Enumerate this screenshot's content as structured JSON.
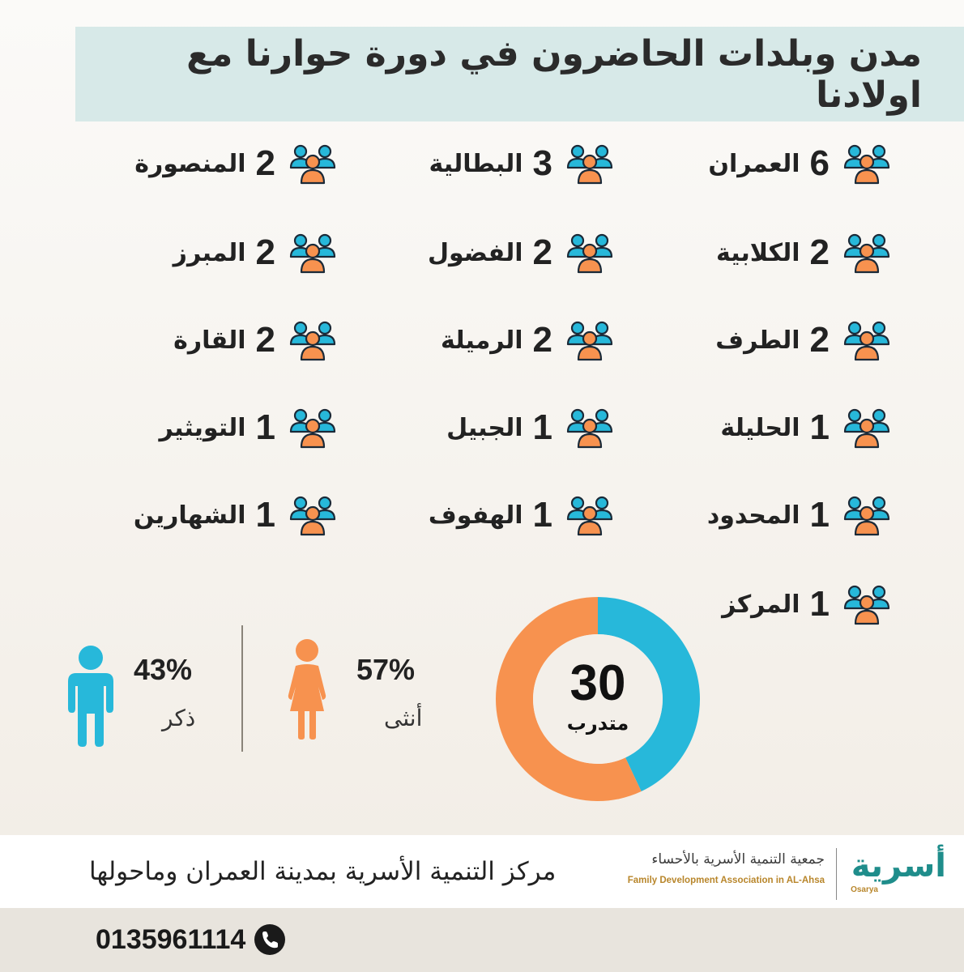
{
  "title": "مدن وبلدات الحاضرون في دورة حوارنا مع اولادنا",
  "cities": [
    {
      "name": "العمران",
      "count": "6"
    },
    {
      "name": "البطالية",
      "count": "3"
    },
    {
      "name": "المنصورة",
      "count": "2"
    },
    {
      "name": "الكلابية",
      "count": "2"
    },
    {
      "name": "الفضول",
      "count": "2"
    },
    {
      "name": "المبرز",
      "count": "2"
    },
    {
      "name": "الطرف",
      "count": "2"
    },
    {
      "name": "الرميلة",
      "count": "2"
    },
    {
      "name": "القارة",
      "count": "2"
    },
    {
      "name": "الحليلة",
      "count": "1"
    },
    {
      "name": "الجبيل",
      "count": "1"
    },
    {
      "name": "التويثير",
      "count": "1"
    },
    {
      "name": "المحدود",
      "count": "1"
    },
    {
      "name": "الهفوف",
      "count": "1"
    },
    {
      "name": "الشهارين",
      "count": "1"
    },
    {
      "name": "المركز",
      "count": "1"
    }
  ],
  "total": {
    "number": "30",
    "label": "متدرب"
  },
  "gender": {
    "female": {
      "percent": "57%",
      "label": "أنثى",
      "fraction": 0.57
    },
    "male": {
      "percent": "43%",
      "label": "ذكر",
      "fraction": 0.43
    }
  },
  "colors": {
    "female": "#f7924f",
    "male": "#27b8da",
    "icon_outline": "#1b2a38"
  },
  "icons": {
    "group": "people-group-icon",
    "female": "female-figure-icon",
    "male": "male-figure-icon",
    "phone": "phone-icon"
  },
  "footer": {
    "center_text": "مركز التنمية الأسرية بمدينة العمران وماحولها",
    "logo_arabic": "جمعية التنمية الأسرية بالأحساء",
    "logo_english": "Family Development Association in AL-Ahsa",
    "logo_mark": "أسرية",
    "logo_mark_en": "Osarya",
    "phone": "0135961114"
  }
}
